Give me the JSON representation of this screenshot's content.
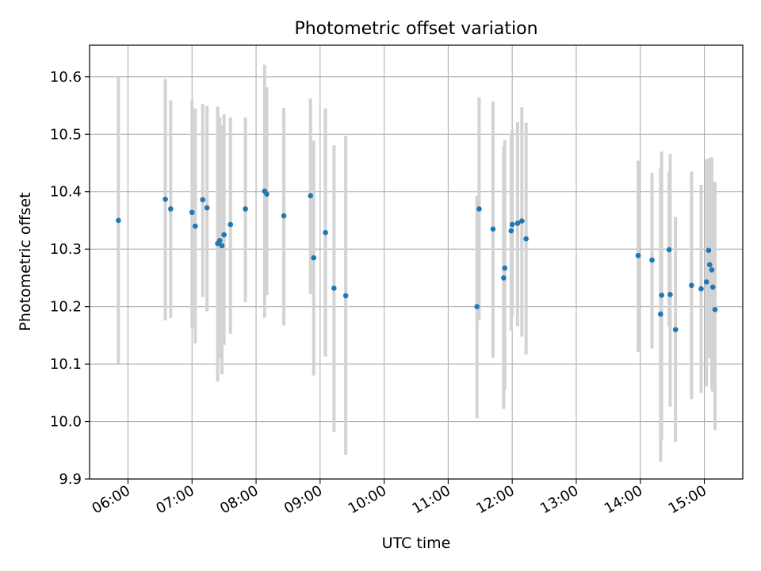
{
  "chart_data": {
    "type": "scatter",
    "title": "Photometric offset variation",
    "xlabel": "UTC time",
    "ylabel": "Photometric offset",
    "xlim": [
      "05:24",
      "15:36"
    ],
    "ylim": [
      9.9,
      10.655
    ],
    "grid": true,
    "legend": "none",
    "x_ticks": [
      "06:00",
      "07:00",
      "08:00",
      "09:00",
      "10:00",
      "11:00",
      "12:00",
      "13:00",
      "14:00",
      "15:00"
    ],
    "y_ticks": [
      9.9,
      10.0,
      10.1,
      10.2,
      10.3,
      10.4,
      10.5,
      10.6
    ],
    "colors": {
      "marker": "#1f77b4",
      "errorbar": "#d3d3d3",
      "grid": "#b0b0b0"
    },
    "series": [
      {
        "x": [
          "05:51",
          "06:35",
          "06:40",
          "07:00",
          "07:03",
          "07:10",
          "07:14",
          "07:24",
          "07:26",
          "07:28",
          "07:30",
          "07:36",
          "07:50",
          "08:08",
          "08:10",
          "08:26",
          "08:51",
          "08:54",
          "09:05",
          "09:13",
          "09:24",
          "11:27",
          "11:29",
          "11:42",
          "11:52",
          "11:53",
          "11:59",
          "12:00",
          "12:05",
          "12:09",
          "12:13",
          "13:58",
          "14:11",
          "14:19",
          "14:20",
          "14:27",
          "14:28",
          "14:33",
          "14:48",
          "14:57",
          "15:02",
          "15:04",
          "15:05",
          "15:07",
          "15:08",
          "15:10"
        ],
        "y": [
          10.35,
          10.387,
          10.37,
          10.364,
          10.34,
          10.386,
          10.372,
          10.31,
          10.315,
          10.306,
          10.325,
          10.343,
          10.37,
          10.401,
          10.396,
          10.358,
          10.393,
          10.285,
          10.329,
          10.232,
          10.219,
          10.2,
          10.37,
          10.335,
          10.25,
          10.267,
          10.332,
          10.343,
          10.345,
          10.349,
          10.318,
          10.289,
          10.281,
          10.187,
          10.22,
          10.299,
          10.221,
          10.16,
          10.237,
          10.231,
          10.243,
          10.298,
          10.273,
          10.264,
          10.234,
          10.195
        ],
        "err_low": [
          10.101,
          10.176,
          10.18,
          10.163,
          10.136,
          10.217,
          10.192,
          10.07,
          10.11,
          10.082,
          10.133,
          10.153,
          10.208,
          10.181,
          10.22,
          10.167,
          10.222,
          10.08,
          10.113,
          9.982,
          9.942,
          10.006,
          10.176,
          10.111,
          10.022,
          10.055,
          10.158,
          10.182,
          10.166,
          10.148,
          10.117,
          10.121,
          10.127,
          9.93,
          9.967,
          10.165,
          10.026,
          9.965,
          10.039,
          10.05,
          10.061,
          10.138,
          10.11,
          10.056,
          10.052,
          9.985
        ],
        "err_high": [
          10.6,
          10.596,
          10.559,
          10.56,
          10.545,
          10.553,
          10.549,
          10.548,
          10.53,
          10.516,
          10.535,
          10.529,
          10.529,
          10.621,
          10.582,
          10.546,
          10.562,
          10.489,
          10.545,
          10.481,
          10.497,
          10.393,
          10.564,
          10.557,
          10.479,
          10.49,
          10.5,
          10.508,
          10.521,
          10.547,
          10.52,
          10.454,
          10.433,
          10.441,
          10.47,
          10.435,
          10.466,
          10.356,
          10.435,
          10.412,
          10.457,
          10.442,
          10.459,
          10.46,
          10.418,
          10.417
        ]
      }
    ]
  }
}
